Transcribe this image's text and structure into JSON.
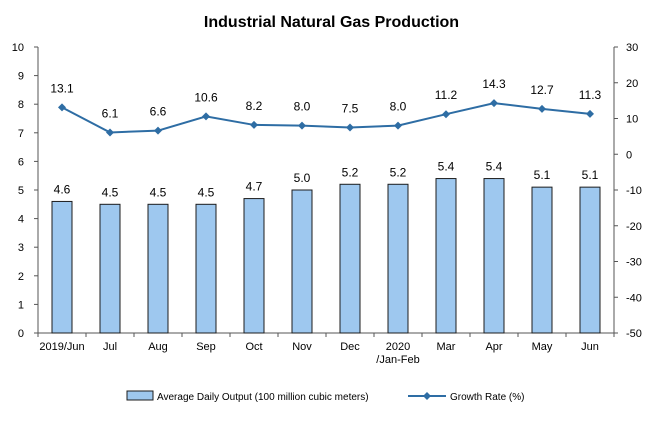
{
  "chart_data": {
    "type": "bar",
    "title": "Industrial Natural Gas Production",
    "categories": [
      [
        "2019/Jun"
      ],
      [
        "Jul"
      ],
      [
        "Aug"
      ],
      [
        "Sep"
      ],
      [
        "Oct"
      ],
      [
        "Nov"
      ],
      [
        "Dec"
      ],
      [
        "2020",
        "/Jan-Feb"
      ],
      [
        "Mar"
      ],
      [
        "Apr"
      ],
      [
        "May"
      ],
      [
        "Jun"
      ]
    ],
    "series": [
      {
        "name": "Average Daily Output (100 million cubic meters)",
        "kind": "bar",
        "axis": "left",
        "values": [
          4.6,
          4.5,
          4.5,
          4.5,
          4.7,
          5.0,
          5.2,
          5.2,
          5.4,
          5.4,
          5.1,
          5.1
        ],
        "labels": [
          "4.6",
          "4.5",
          "4.5",
          "4.5",
          "4.7",
          "5.0",
          "5.2",
          "5.2",
          "5.4",
          "5.4",
          "5.1",
          "5.1"
        ]
      },
      {
        "name": "Growth Rate (%)",
        "kind": "line",
        "axis": "right",
        "values": [
          13.1,
          6.1,
          6.6,
          10.6,
          8.2,
          8.0,
          7.5,
          8.0,
          11.2,
          14.3,
          12.7,
          11.3
        ],
        "labels": [
          "13.1",
          "6.1",
          "6.6",
          "10.6",
          "8.2",
          "8.0",
          "7.5",
          "8.0",
          "11.2",
          "14.3",
          "12.7",
          "11.3"
        ]
      }
    ],
    "y_left": {
      "min": 0,
      "max": 10,
      "step": 1
    },
    "y_right": {
      "min": -50,
      "max": 30,
      "step": 10
    },
    "grid": false,
    "legend_position": "bottom",
    "colors": {
      "bar_fill": "#9ec8ef",
      "bar_stroke": "#1c1c1c",
      "line": "#2e6da4",
      "axis": "#555555"
    }
  }
}
